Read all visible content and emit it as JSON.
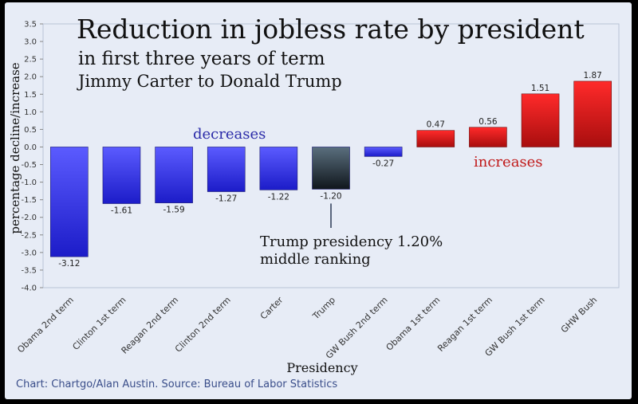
{
  "title": "Reduction in jobless rate by president",
  "subtitle1": "in first three years of term",
  "subtitle2": "Jimmy Carter to Donald Trump",
  "annotations": {
    "decreases": "decreases",
    "increases": "increases",
    "trump_line1": "Trump presidency 1.20%",
    "trump_line2": "middle ranking"
  },
  "source": "Chart: Chartgo/Alan Austin. Source: Bureau of Labor Statistics",
  "colors": {
    "negative_bar": "#3a3af0",
    "highlight_bar": "#2f3a44",
    "positive_bar": "#e02020",
    "background": "#e7ecf6"
  },
  "chart_data": {
    "type": "bar",
    "title": "Reduction in jobless rate by president",
    "xlabel": "Presidency",
    "ylabel": "percentage decline/increase",
    "ylim": [
      -4.0,
      3.5
    ],
    "yticks": [
      "3.5",
      "3.0",
      "2.5",
      "2.0",
      "1.5",
      "1.0",
      "0.5",
      "0.0",
      "-0.5",
      "-1.0",
      "-1.5",
      "-2.0",
      "-2.5",
      "-3.0",
      "-3.5",
      "-4.0"
    ],
    "grid": false,
    "categories": [
      "Obama 2nd term",
      "Clinton 1st term",
      "Reagan 2nd term",
      "Clinton 2nd term",
      "Carter",
      "Trump",
      "GW Bush 2nd term",
      "Obama 1st term",
      "Reagan 1st term",
      "GW Bush 1st term",
      "GHW Bush"
    ],
    "values": [
      -3.12,
      -1.61,
      -1.59,
      -1.27,
      -1.22,
      -1.2,
      -0.27,
      0.47,
      0.56,
      1.51,
      1.87
    ],
    "value_labels": [
      "-3.12",
      "-1.61",
      "-1.59",
      "-1.27",
      "-1.22",
      "-1.20",
      "-0.27",
      "0.47",
      "0.56",
      "1.51",
      "1.87"
    ],
    "highlight_category": "Trump"
  }
}
